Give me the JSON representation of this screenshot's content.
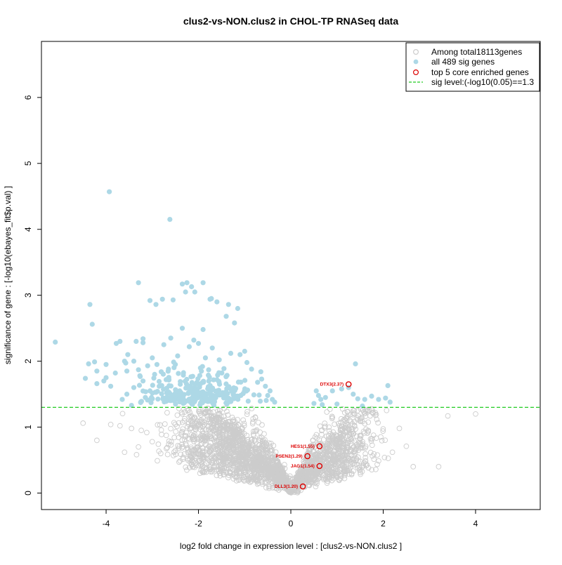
{
  "chart_data": {
    "type": "scatter",
    "title": "clus2-vs-NON.clus2 in CHOL-TP RNASeq data",
    "xlabel": "log2 fold change in expression level : [clus2-vs-NON.clus2 ]",
    "ylabel": "significance of gene : [-log10(ebayes_fit$p.val) ]",
    "xlim": [
      -5.4,
      5.4
    ],
    "ylim": [
      -0.25,
      6.85
    ],
    "x_ticks": [
      -4,
      -2,
      0,
      2,
      4
    ],
    "x_tick_labels": [
      "-4",
      "-2",
      "0",
      "2",
      "4"
    ],
    "y_ticks": [
      0,
      1,
      2,
      3,
      4,
      5,
      6
    ],
    "y_tick_labels": [
      "0",
      "1",
      "2",
      "3",
      "4",
      "5",
      "6"
    ],
    "grid": false,
    "legend_position": "top-right",
    "legend": [
      {
        "label": "Among total18113genes",
        "marker": "open-circle",
        "color": "#cccccc"
      },
      {
        "label": "all 489 sig genes",
        "marker": "filled-circle",
        "color": "#add8e6"
      },
      {
        "label": "top 5 core enriched genes",
        "marker": "open-circle",
        "color": "#dd0000"
      },
      {
        "label": "sig level:(-log10(0.05)==1.3",
        "marker": "dashed-line",
        "color": "#22cc22"
      }
    ],
    "threshold": {
      "y": 1.3,
      "color": "#22cc22"
    },
    "colors": {
      "nonsig": "#cccccc",
      "sig": "#add8e6",
      "highlight": "#dd0000"
    },
    "sig_points": [
      [
        -5.1,
        2.29
      ],
      [
        -3.93,
        4.57
      ],
      [
        -2.62,
        4.15
      ],
      [
        -4.35,
        2.86
      ],
      [
        -4.3,
        2.56
      ],
      [
        -3.3,
        3.19
      ],
      [
        -3.78,
        2.27
      ],
      [
        -3.53,
        2.1
      ],
      [
        -3.7,
        2.3
      ],
      [
        -3.2,
        2.34
      ],
      [
        -3.05,
        2.92
      ],
      [
        -2.92,
        2.86
      ],
      [
        -2.78,
        2.94
      ],
      [
        -2.55,
        2.93
      ],
      [
        -2.35,
        3.17
      ],
      [
        -2.25,
        3.19
      ],
      [
        -2.15,
        3.13
      ],
      [
        -1.9,
        3.19
      ],
      [
        -1.72,
        2.95
      ],
      [
        -1.35,
        2.86
      ],
      [
        -2.28,
        3.05
      ],
      [
        -2.08,
        3.05
      ],
      [
        -1.75,
        2.94
      ],
      [
        -1.6,
        2.9
      ],
      [
        -1.15,
        2.8
      ],
      [
        -1.4,
        2.68
      ],
      [
        -1.22,
        2.58
      ],
      [
        -1.9,
        2.48
      ],
      [
        -2.1,
        2.32
      ],
      [
        -2.35,
        2.5
      ],
      [
        -2.6,
        2.35
      ],
      [
        -2.45,
        2.08
      ],
      [
        -2.75,
        2.25
      ],
      [
        -3.0,
        2.05
      ],
      [
        -3.2,
        2.28
      ],
      [
        -3.35,
        2.3
      ],
      [
        -3.4,
        2.0
      ],
      [
        -3.6,
        2.0
      ],
      [
        -3.55,
        1.85
      ],
      [
        -3.3,
        1.87
      ],
      [
        -3.1,
        1.93
      ],
      [
        -2.95,
        1.8
      ],
      [
        -4.0,
        1.95
      ],
      [
        -4.2,
        1.85
      ],
      [
        -4.45,
        1.74
      ],
      [
        -4.38,
        1.96
      ],
      [
        -4.2,
        1.66
      ],
      [
        -4.05,
        1.7
      ],
      [
        -3.9,
        1.62
      ],
      [
        -3.8,
        1.82
      ],
      [
        -4.0,
        1.75
      ],
      [
        -4.25,
        1.99
      ],
      [
        -1.1,
        2.1
      ],
      [
        -1.0,
        2.15
      ],
      [
        -0.85,
        1.88
      ],
      [
        -0.65,
        1.84
      ],
      [
        -0.72,
        1.68
      ],
      [
        -0.55,
        1.62
      ],
      [
        -0.45,
        1.55
      ],
      [
        -0.5,
        1.48
      ],
      [
        -0.4,
        1.42
      ],
      [
        -0.35,
        1.38
      ],
      [
        -0.95,
        1.98
      ],
      [
        -1.3,
        2.12
      ],
      [
        -1.55,
        2.02
      ],
      [
        -1.7,
        2.2
      ],
      [
        -1.85,
        2.05
      ],
      [
        -2.0,
        2.27
      ],
      [
        -2.2,
        2.22
      ],
      [
        -2.5,
        1.95
      ],
      [
        -2.7,
        1.72
      ],
      [
        -2.85,
        1.62
      ],
      [
        -3.05,
        1.55
      ],
      [
        -3.15,
        1.45
      ],
      [
        -3.25,
        1.38
      ],
      [
        -3.45,
        1.33
      ],
      [
        -3.65,
        1.42
      ],
      [
        -3.55,
        1.5
      ],
      [
        -3.4,
        1.6
      ],
      [
        -3.2,
        1.7
      ],
      [
        -2.9,
        1.95
      ],
      [
        -2.65,
        1.88
      ],
      [
        0.55,
        1.55
      ],
      [
        0.6,
        1.48
      ],
      [
        0.65,
        1.42
      ],
      [
        0.75,
        1.45
      ],
      [
        0.9,
        1.55
      ],
      [
        1.0,
        1.35
      ],
      [
        1.1,
        1.58
      ],
      [
        1.25,
        1.6
      ],
      [
        1.35,
        1.5
      ],
      [
        1.4,
        1.96
      ],
      [
        1.45,
        1.43
      ],
      [
        1.6,
        1.42
      ],
      [
        1.75,
        1.47
      ],
      [
        1.9,
        1.42
      ],
      [
        2.05,
        1.44
      ],
      [
        2.1,
        1.63
      ],
      [
        2.15,
        1.38
      ],
      [
        0.68,
        1.34
      ],
      [
        0.5,
        1.36
      ],
      [
        1.55,
        1.32
      ]
    ],
    "highlight_points": [
      {
        "label": "DTX3(2.37)",
        "x": 1.25,
        "y": 1.65
      },
      {
        "label": "HES1(1.55)",
        "x": 0.62,
        "y": 0.71
      },
      {
        "label": "PSEN2(1.29)",
        "x": 0.36,
        "y": 0.56
      },
      {
        "label": "JAG1(1.54)",
        "x": 0.62,
        "y": 0.41
      },
      {
        "label": "DLL3(1.20)",
        "x": 0.26,
        "y": 0.1
      }
    ]
  }
}
